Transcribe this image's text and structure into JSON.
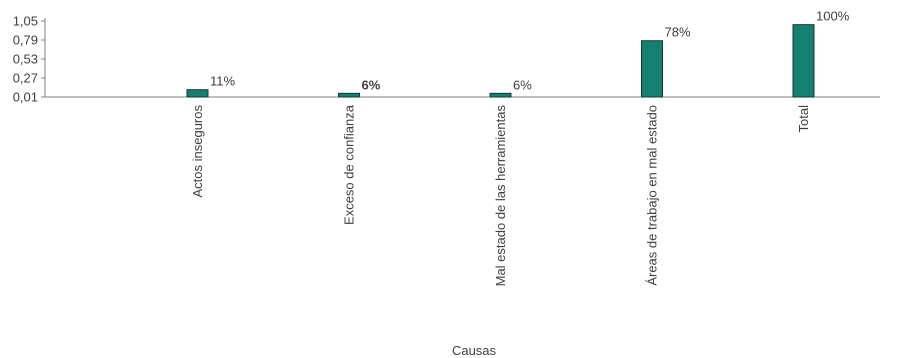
{
  "chart_data": {
    "type": "bar",
    "title": "",
    "xlabel": "Causas",
    "ylabel": "",
    "categories": [
      "Actos inseguros",
      "Exceso de confianza",
      "Mal estado de las herramientas",
      "Áreas de trabajo en mal estado",
      "Total"
    ],
    "values": [
      0.11,
      0.06,
      0.06,
      0.78,
      1.0
    ],
    "data_labels": [
      "11%",
      "6%",
      "6%",
      "78%",
      "100%"
    ],
    "bold_labels": [
      false,
      true,
      false,
      false,
      false
    ],
    "yticks": [
      "0,01",
      "0,27",
      "0,53",
      "0,79",
      "1,05"
    ],
    "ytick_values": [
      0.01,
      0.27,
      0.53,
      0.79,
      1.05
    ],
    "ylim": [
      0.01,
      1.05
    ],
    "grid": false,
    "legend": "none",
    "bar_color": "#168070",
    "bar_edge_color": "#0d3b34"
  }
}
